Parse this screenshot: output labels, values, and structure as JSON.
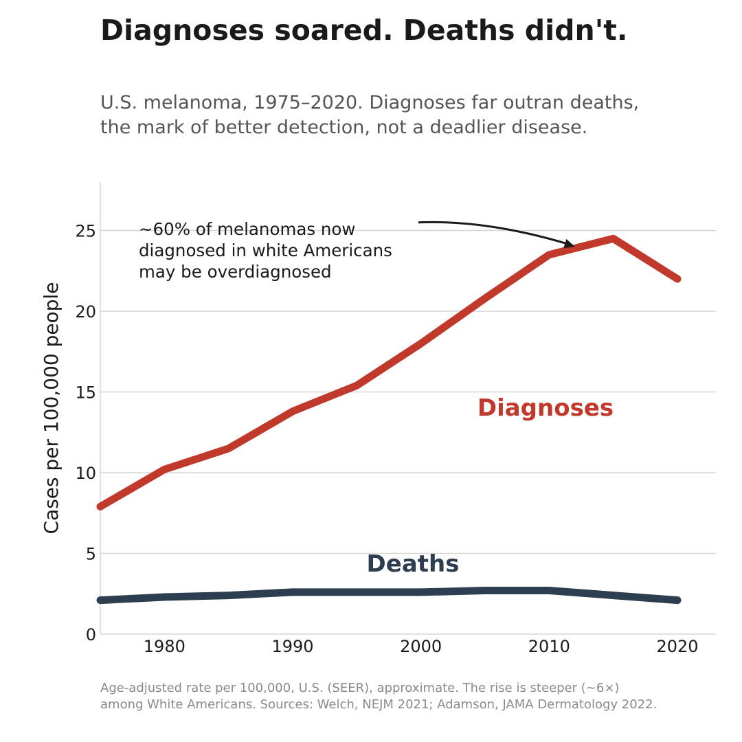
{
  "title": "Diagnoses soared. Deaths didn't.",
  "subtitle_lines": [
    "U.S. melanoma, 1975–2020. Diagnoses far outran deaths,",
    "the mark of better detection, not a deadlier disease."
  ],
  "footnote_lines": [
    "Age-adjusted rate per 100,000, U.S. (SEER), approximate. The rise is steeper (~6×)",
    "among White Americans. Sources: Welch, NEJM 2021; Adamson, JAMA Dermatology 2022."
  ],
  "chart_data": {
    "type": "line",
    "title": "Diagnoses soared. Deaths didn't.",
    "xlabel": "",
    "ylabel": "Cases per 100,000 people",
    "xlim": [
      1975,
      2023
    ],
    "ylim": [
      0,
      28
    ],
    "x_ticks": [
      1980,
      1990,
      2000,
      2010,
      2020
    ],
    "y_ticks": [
      0,
      5,
      10,
      15,
      20,
      25
    ],
    "grid": "horizontal",
    "x": [
      1975,
      1980,
      1985,
      1990,
      1995,
      2000,
      2005,
      2010,
      2015,
      2020
    ],
    "series": [
      {
        "name": "Diagnoses",
        "color": "#c0392b",
        "values": [
          7.9,
          10.2,
          11.5,
          13.8,
          15.4,
          18.0,
          20.8,
          23.5,
          24.5,
          22.0
        ]
      },
      {
        "name": "Deaths",
        "color": "#2c3e50",
        "values": [
          2.1,
          2.3,
          2.4,
          2.6,
          2.6,
          2.6,
          2.7,
          2.7,
          2.4,
          2.1
        ]
      }
    ],
    "annotation": {
      "lines": [
        "~60% of melanomas now",
        "diagnosed in white Americans",
        "may be overdiagnosed"
      ],
      "arrow_from": [
        1999.8,
        25.5
      ],
      "arrow_to": [
        2012,
        24.0
      ]
    }
  }
}
